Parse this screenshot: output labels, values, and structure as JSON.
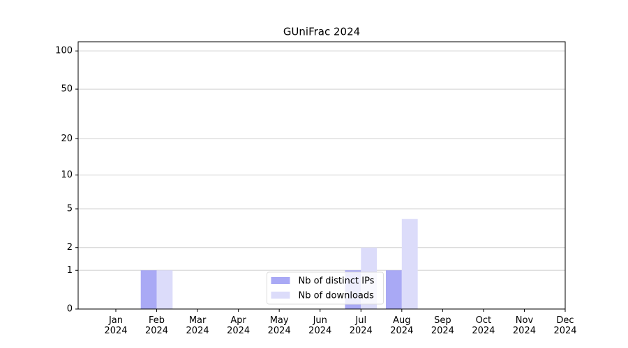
{
  "chart_data": {
    "type": "bar",
    "title": "GUniFrac 2024",
    "categories": [
      "Jan\n2024",
      "Feb\n2024",
      "Mar\n2024",
      "Apr\n2024",
      "May\n2024",
      "Jun\n2024",
      "Jul\n2024",
      "Aug\n2024",
      "Sep\n2024",
      "Oct\n2024",
      "Nov\n2024",
      "Dec\n2024"
    ],
    "series": [
      {
        "name": "Nb of distinct IPs",
        "color": "#a9a9f5",
        "values": [
          0,
          1,
          0,
          0,
          0,
          0,
          1,
          1,
          0,
          0,
          0,
          0
        ]
      },
      {
        "name": "Nb of downloads",
        "color": "#dcdcfa",
        "values": [
          0,
          1,
          0,
          0,
          0,
          0,
          2,
          4,
          0,
          0,
          0,
          0
        ]
      }
    ],
    "y_scale": "log1p",
    "ylim": [
      0,
      118
    ],
    "yticks": [
      0,
      1,
      2,
      5,
      10,
      20,
      50,
      100
    ],
    "grid": true,
    "legend": "lower center"
  }
}
